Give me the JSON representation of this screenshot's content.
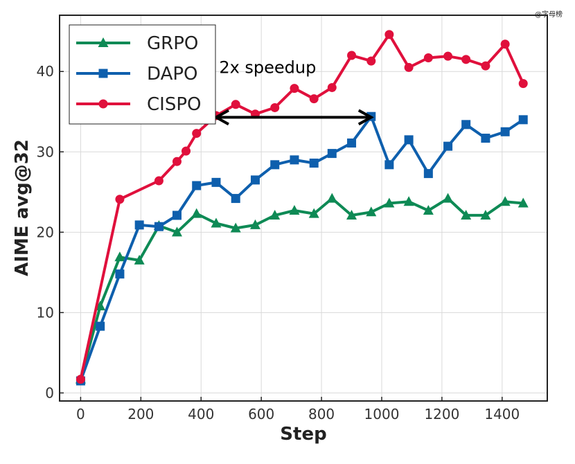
{
  "watermark": "@字母榜",
  "colors": {
    "GRPO": "#0e8a55",
    "DAPO": "#0e5fad",
    "CISPO": "#e0103c"
  },
  "chart_data": {
    "type": "line",
    "xlabel": "Step",
    "ylabel": "AIME avg@32",
    "xlim": [
      -70,
      1550
    ],
    "ylim": [
      -1,
      47
    ],
    "xticks": [
      0,
      200,
      400,
      600,
      800,
      1000,
      1200,
      1400
    ],
    "yticks": [
      0,
      10,
      20,
      30,
      40
    ],
    "grid": true,
    "legend_position": "top-left",
    "series": [
      {
        "name": "GRPO",
        "marker": "triangle",
        "x": [
          0,
          65,
          130,
          195,
          260,
          320,
          385,
          450,
          515,
          580,
          645,
          710,
          775,
          835,
          900,
          965,
          1025,
          1090,
          1155,
          1220,
          1280,
          1345,
          1410,
          1470
        ],
        "values": [
          1.7,
          10.8,
          16.9,
          16.5,
          20.8,
          20.0,
          22.3,
          21.1,
          20.5,
          20.9,
          22.1,
          22.7,
          22.3,
          24.2,
          22.1,
          22.5,
          23.6,
          23.8,
          22.7,
          24.2,
          22.1,
          22.1,
          23.8,
          23.6
        ]
      },
      {
        "name": "DAPO",
        "marker": "square",
        "x": [
          0,
          65,
          130,
          195,
          260,
          320,
          385,
          450,
          515,
          580,
          645,
          710,
          775,
          835,
          900,
          965,
          1025,
          1090,
          1155,
          1220,
          1280,
          1345,
          1410,
          1470
        ],
        "values": [
          1.5,
          8.3,
          14.8,
          20.9,
          20.7,
          22.1,
          25.8,
          26.2,
          24.2,
          26.5,
          28.4,
          29.0,
          28.6,
          29.8,
          31.1,
          34.4,
          28.4,
          31.5,
          27.3,
          30.7,
          33.4,
          31.7,
          32.5,
          34.0
        ]
      },
      {
        "name": "CISPO",
        "marker": "circle",
        "x": [
          0,
          130,
          260,
          320,
          350,
          385,
          450,
          515,
          580,
          645,
          710,
          775,
          835,
          900,
          965,
          1025,
          1090,
          1155,
          1220,
          1280,
          1345,
          1410,
          1470
        ],
        "values": [
          1.7,
          24.1,
          26.4,
          28.8,
          30.1,
          32.3,
          34.5,
          35.9,
          34.7,
          35.5,
          37.9,
          36.6,
          38.0,
          42.0,
          41.3,
          44.6,
          40.5,
          41.7,
          41.9,
          41.5,
          40.7,
          43.4,
          38.5
        ]
      }
    ],
    "annotations": [
      {
        "text": "2x speedup",
        "arrow_from": [
          450,
          34.3
        ],
        "arrow_to": [
          965,
          34.3
        ],
        "text_at": [
          460,
          39.8
        ]
      }
    ]
  }
}
